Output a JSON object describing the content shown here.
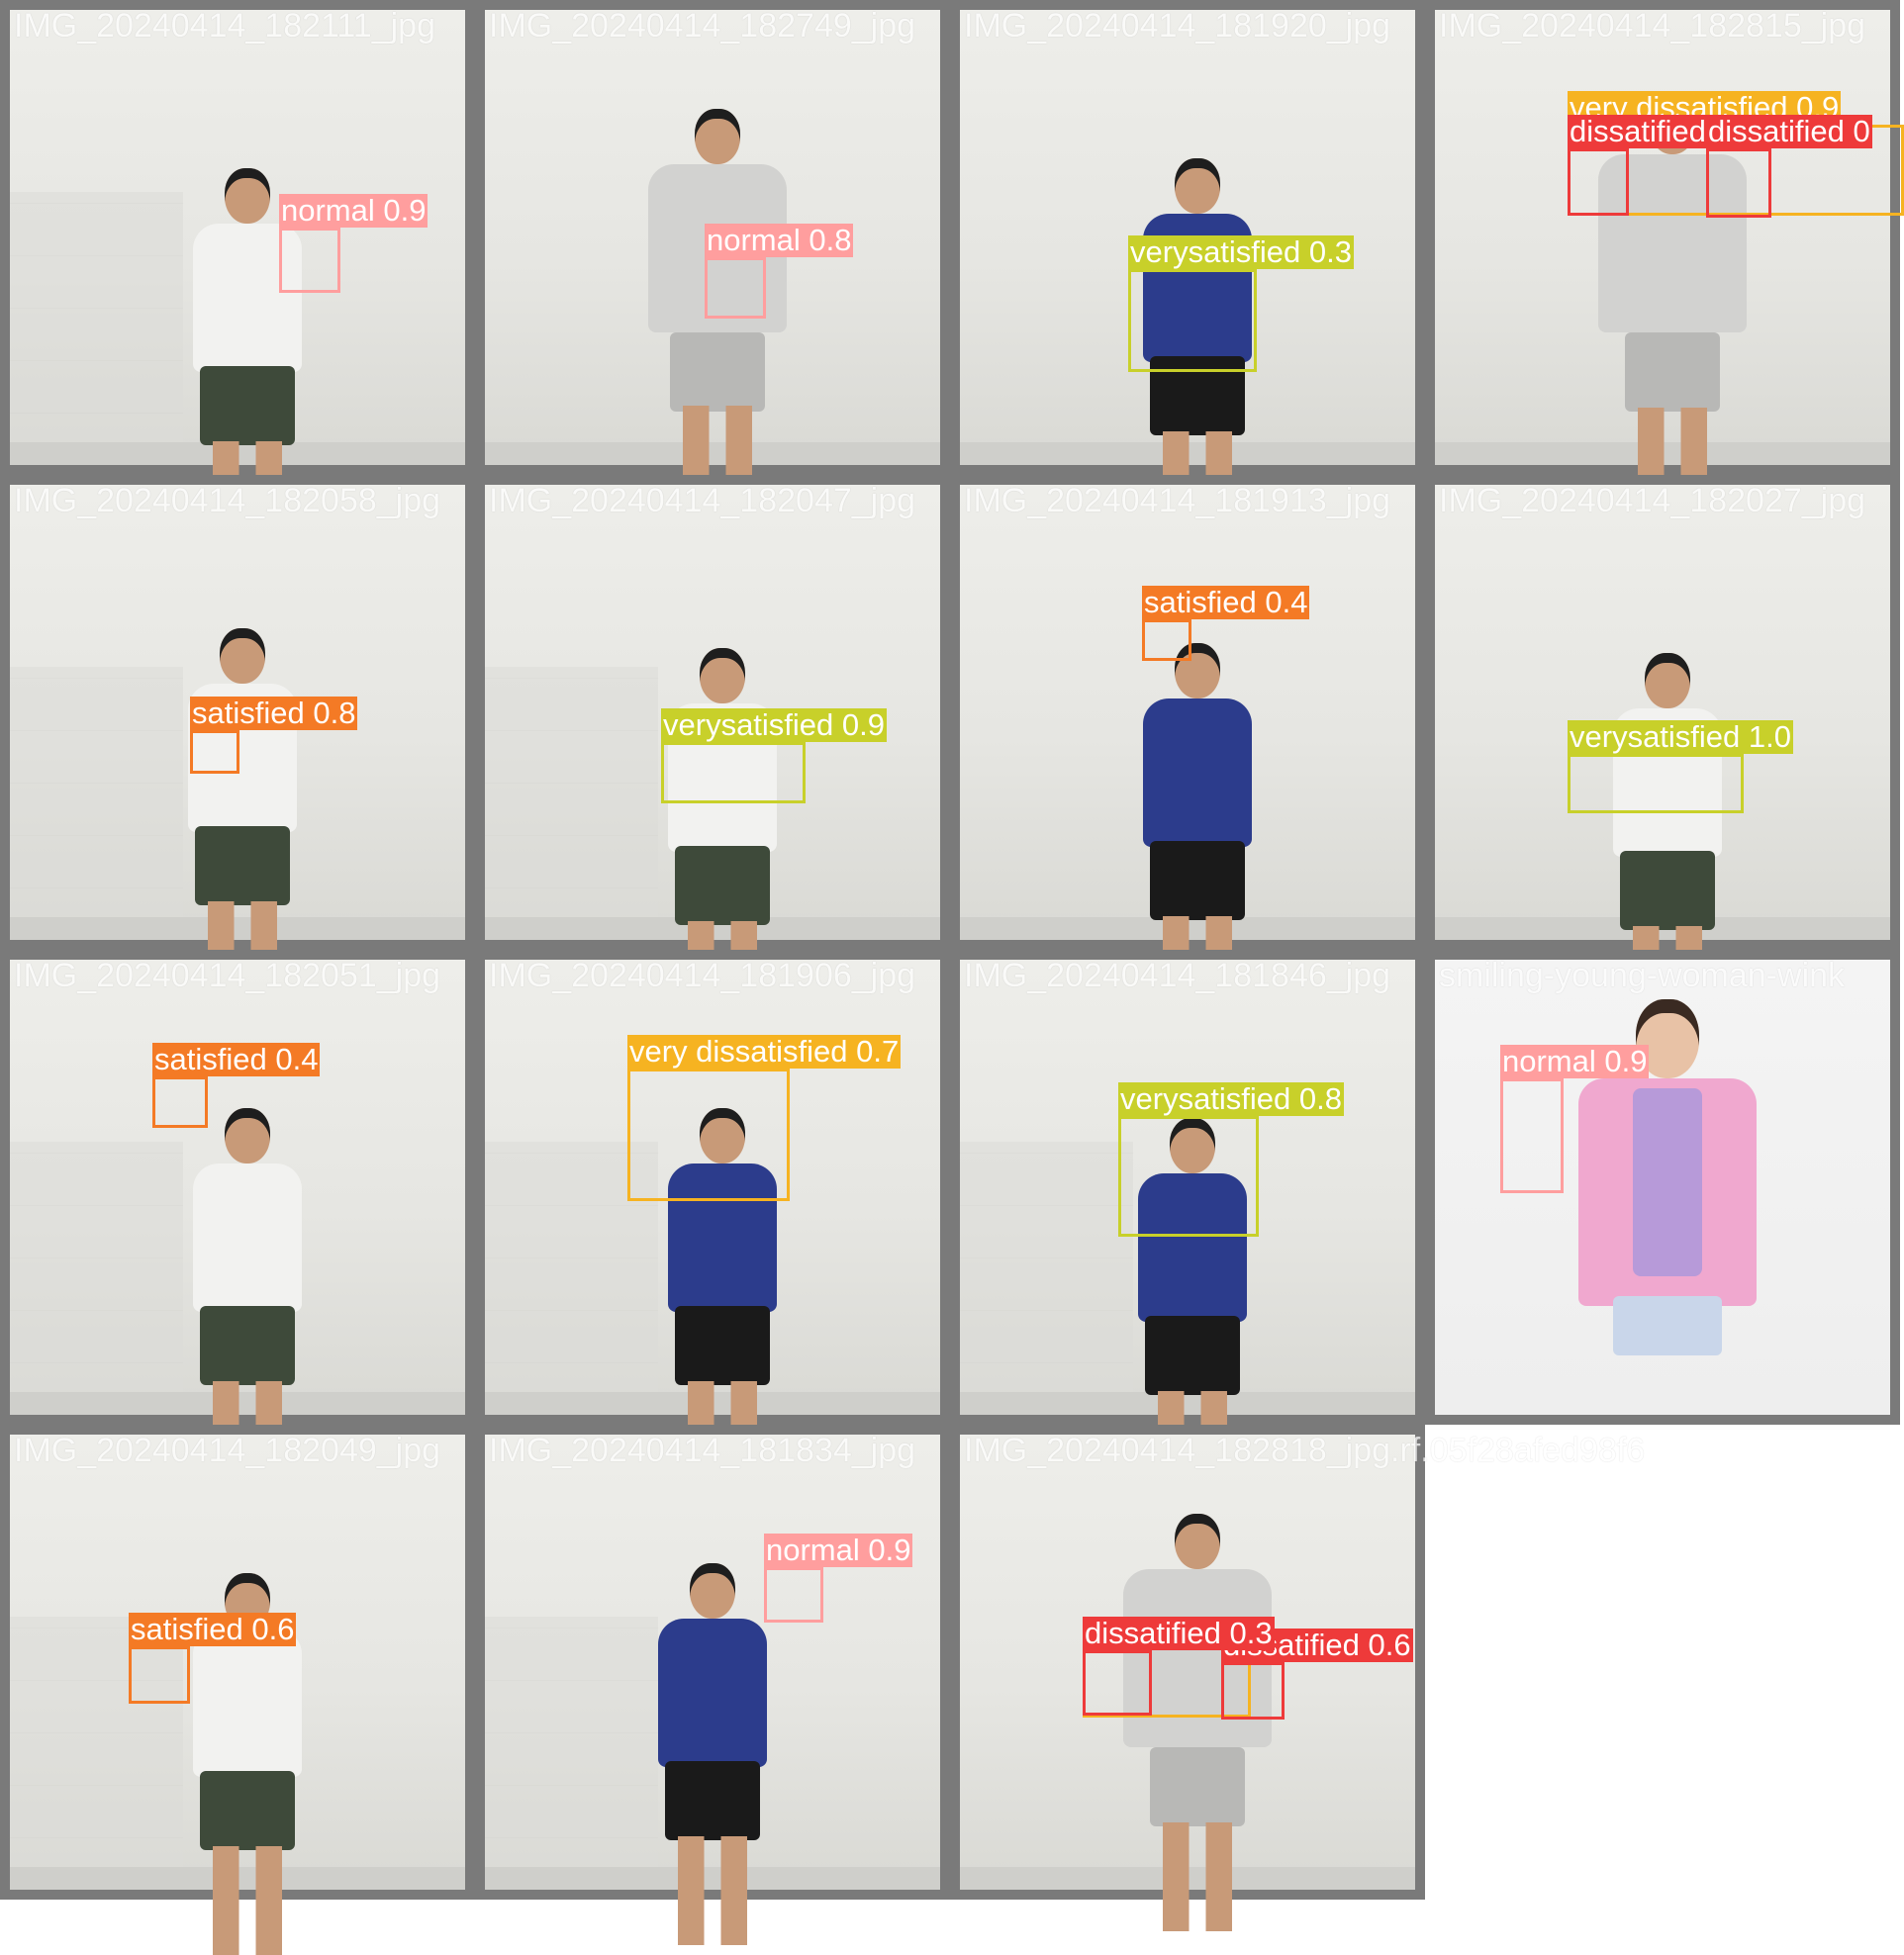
{
  "colors": {
    "normal": "#ff9e9e",
    "verysatisfied": "#c8d02a",
    "satisfied": "#f47a25",
    "very_dissatisfied": "#f6b321",
    "dissatisfied": "#ee3a3a",
    "tile_border": "#7a7a7a"
  },
  "tiles": [
    {
      "filename": "IMG_20240414_182111_jpg",
      "detections": [
        {
          "text": "normal 0.9"
        }
      ]
    },
    {
      "filename": "IMG_20240414_182749_jpg",
      "detections": [
        {
          "text": "normal 0.8"
        }
      ]
    },
    {
      "filename": "IMG_20240414_181920_jpg",
      "detections": [
        {
          "text": "verysatisfied 0.3"
        }
      ]
    },
    {
      "filename": "IMG_20240414_182815_jpg",
      "detections": [
        {
          "text": "very dissatisfied 0.9"
        },
        {
          "text": "dissatified"
        },
        {
          "text": "dissatified 0"
        }
      ]
    },
    {
      "filename": "IMG_20240414_182058_jpg",
      "detections": [
        {
          "text": "satisfied 0.8"
        }
      ]
    },
    {
      "filename": "IMG_20240414_182047_jpg",
      "detections": [
        {
          "text": "verysatisfied 0.9"
        }
      ]
    },
    {
      "filename": "IMG_20240414_181913_jpg",
      "detections": [
        {
          "text": "satisfied 0.4"
        }
      ]
    },
    {
      "filename": "IMG_20240414_182027_jpg",
      "detections": [
        {
          "text": "verysatisfied 1.0"
        }
      ]
    },
    {
      "filename": "IMG_20240414_182051_jpg",
      "detections": [
        {
          "text": "satisfied 0.4"
        }
      ]
    },
    {
      "filename": "IMG_20240414_181906_jpg",
      "detections": [
        {
          "text": "very dissatisfied 0.7"
        }
      ]
    },
    {
      "filename": "IMG_20240414_181846_jpg",
      "detections": [
        {
          "text": "verysatisfied 0.8"
        }
      ]
    },
    {
      "filename": "smiling-young-woman-wink",
      "detections": [
        {
          "text": "normal 0.9"
        }
      ]
    },
    {
      "filename": "IMG_20240414_182049_jpg",
      "detections": [
        {
          "text": "satisfied 0.6"
        }
      ]
    },
    {
      "filename": "IMG_20240414_181834_jpg",
      "detections": [
        {
          "text": "normal 0.9"
        }
      ]
    },
    {
      "filename": "IMG_20240414_182818_jpg.rf.05f28afed98f6",
      "detections": [
        {
          "text": "dissatified 0.3"
        },
        {
          "text": "dissatified 0.6"
        }
      ]
    }
  ]
}
